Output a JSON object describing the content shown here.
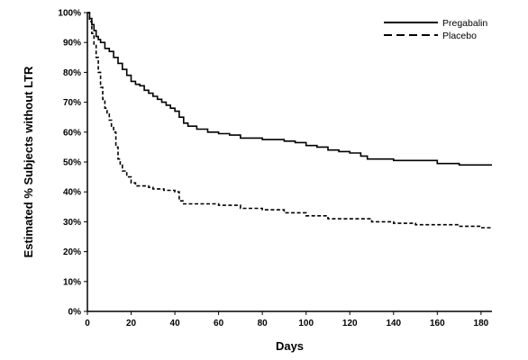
{
  "chart_data": {
    "type": "line",
    "title": "",
    "xlabel": "Days",
    "ylabel": "Estimated % Subjects without LTR",
    "xlim": [
      0,
      185
    ],
    "ylim": [
      0,
      100
    ],
    "x_ticks": [
      0,
      20,
      40,
      60,
      80,
      100,
      120,
      140,
      160,
      180
    ],
    "y_ticks": [
      0,
      10,
      20,
      30,
      40,
      50,
      60,
      70,
      80,
      90,
      100
    ],
    "y_tick_suffix": "%",
    "grid": false,
    "legend": {
      "position": "top-right"
    },
    "series": [
      {
        "name": "Pregabalin",
        "style": "solid",
        "color": "#000000",
        "x": [
          0,
          1,
          2,
          3,
          4,
          5,
          6,
          8,
          10,
          12,
          14,
          16,
          18,
          20,
          22,
          24,
          26,
          28,
          30,
          32,
          34,
          36,
          38,
          40,
          42,
          44,
          46,
          50,
          55,
          60,
          65,
          70,
          80,
          90,
          95,
          100,
          105,
          110,
          115,
          120,
          125,
          128,
          135,
          140,
          150,
          160,
          170,
          180,
          185
        ],
        "y": [
          100,
          98,
          96,
          94,
          92,
          91,
          90,
          88,
          87,
          85,
          83,
          81,
          79,
          77,
          76,
          75.5,
          74,
          73,
          72,
          71,
          70,
          69,
          68,
          67,
          65,
          63,
          62,
          61,
          60,
          59.5,
          59,
          58,
          57.5,
          57,
          56.5,
          55.5,
          55,
          54,
          53.5,
          53,
          52,
          51,
          51,
          50.5,
          50.5,
          49.5,
          49,
          49,
          49
        ]
      },
      {
        "name": "Placebo",
        "style": "dashed",
        "color": "#000000",
        "x": [
          0,
          1,
          2,
          3,
          4,
          5,
          6,
          7,
          8,
          9,
          10,
          11,
          12,
          13,
          14,
          15,
          16,
          18,
          20,
          22,
          24,
          28,
          30,
          35,
          40,
          42,
          44,
          50,
          60,
          70,
          80,
          90,
          100,
          110,
          120,
          130,
          140,
          150,
          160,
          170,
          180,
          185
        ],
        "y": [
          100,
          97,
          93,
          89,
          85,
          80,
          75,
          71,
          68,
          66,
          64,
          62,
          60,
          55,
          51,
          49,
          47,
          45,
          43,
          42,
          42,
          41.5,
          41,
          40.5,
          40,
          37,
          36,
          36,
          35.5,
          34.5,
          34,
          33,
          32,
          31,
          31,
          30,
          29.5,
          29,
          29,
          28.5,
          28,
          28
        ]
      }
    ]
  }
}
